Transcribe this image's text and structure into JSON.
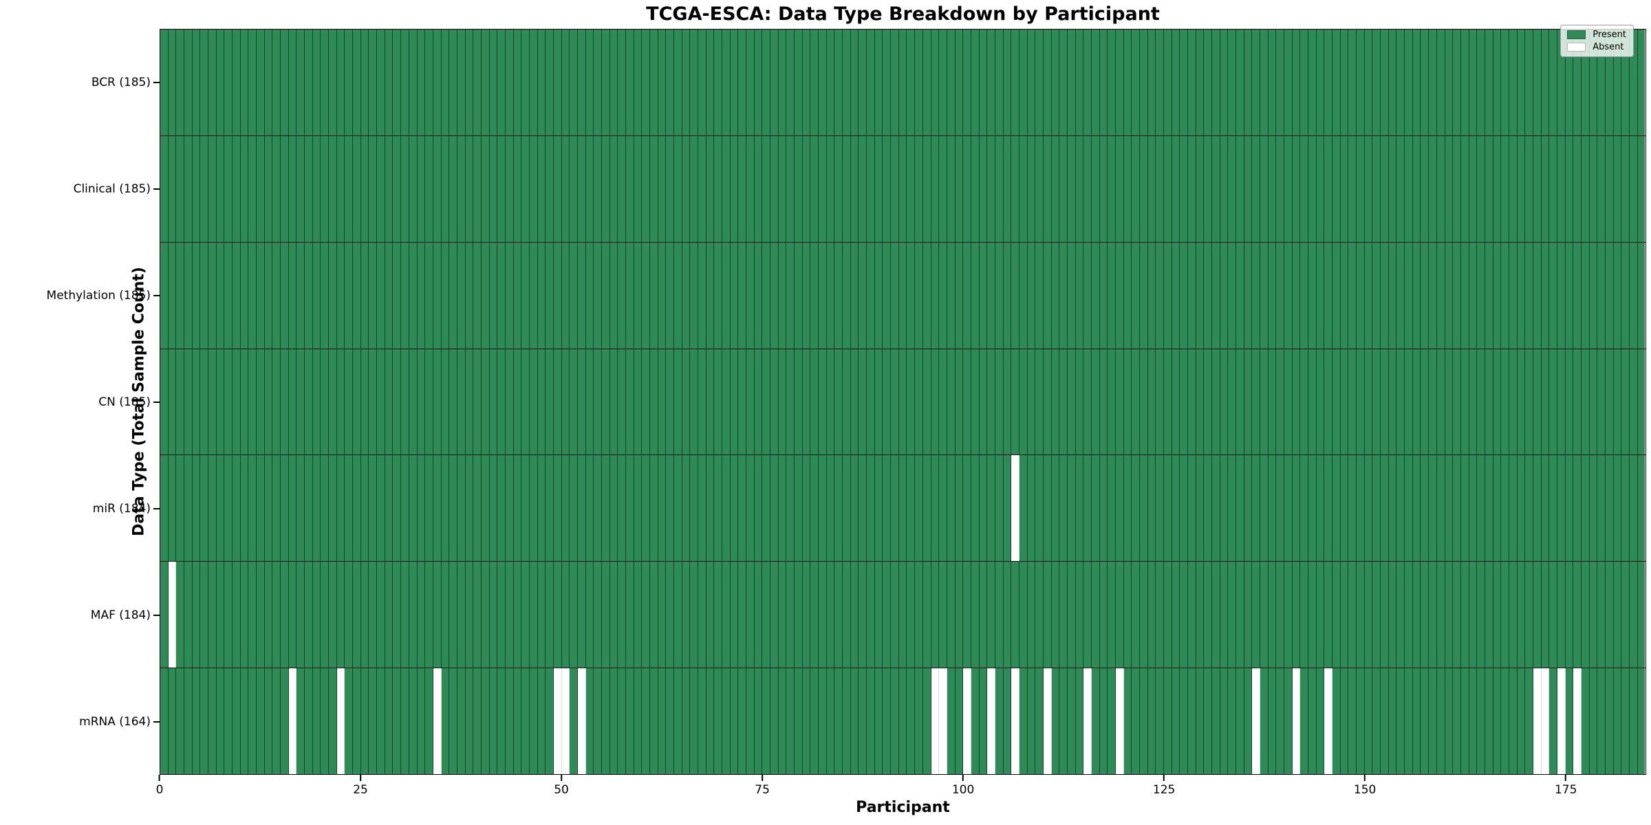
{
  "chart_data": {
    "type": "heatmap",
    "title": "TCGA-ESCA: Data Type Breakdown by Participant",
    "xlabel": "Participant",
    "ylabel": "Data Type (Total Sample Count)",
    "n_participants": 185,
    "x_range": [
      0,
      185
    ],
    "x_ticks": [
      0,
      25,
      50,
      75,
      100,
      125,
      150,
      175
    ],
    "grid": "cell-edges",
    "legend_position": "upper right",
    "legend": [
      {
        "label": "Present",
        "color": "#2e8b57"
      },
      {
        "label": "Absent",
        "color": "#ffffff"
      }
    ],
    "colors": {
      "present": "#2e8b57",
      "absent": "#ffffff",
      "cell_edge": "rgba(0,0,0,0.5)",
      "row_divider": "#141414"
    },
    "rows": [
      {
        "name": "BCR",
        "label": "BCR (185)",
        "present_count": 185,
        "absent_participants": []
      },
      {
        "name": "Clinical",
        "label": "Clinical (185)",
        "present_count": 185,
        "absent_participants": []
      },
      {
        "name": "Methylation",
        "label": "Methylation (185)",
        "present_count": 185,
        "absent_participants": []
      },
      {
        "name": "CN",
        "label": "CN (185)",
        "present_count": 185,
        "absent_participants": []
      },
      {
        "name": "miR",
        "label": "miR (184)",
        "present_count": 184,
        "absent_participants": [
          106
        ]
      },
      {
        "name": "MAF",
        "label": "MAF (184)",
        "present_count": 184,
        "absent_participants": [
          1
        ]
      },
      {
        "name": "mRNA",
        "label": "mRNA (164)",
        "present_count": 164,
        "absent_participants": [
          16,
          22,
          34,
          49,
          50,
          52,
          96,
          97,
          100,
          103,
          106,
          110,
          115,
          119,
          136,
          141,
          145,
          171,
          172,
          174,
          176
        ]
      }
    ]
  }
}
